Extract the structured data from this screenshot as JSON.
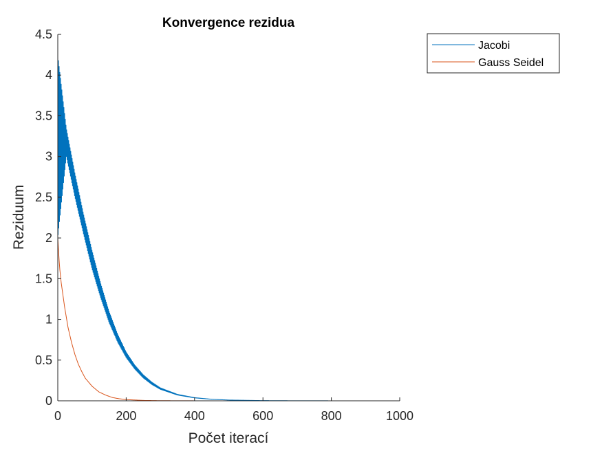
{
  "chart_data": {
    "type": "line",
    "title": "Konvergence rezidua",
    "xlabel": "Počet iterací",
    "ylabel": "Reziduum",
    "xlim": [
      0,
      1000
    ],
    "ylim": [
      0,
      4.5
    ],
    "xticks": [
      "0",
      "200",
      "400",
      "600",
      "800",
      "1000"
    ],
    "yticks": [
      "0",
      "0.5",
      "1",
      "1.5",
      "2",
      "2.5",
      "3",
      "3.5",
      "4",
      "4.5"
    ],
    "grid": false,
    "legend_position": "outside-top-right",
    "series": [
      {
        "name": "Jacobi",
        "color": "#0072BD",
        "oscillating": true,
        "x": [
          0,
          25,
          50,
          75,
          100,
          125,
          150,
          175,
          200,
          225,
          250,
          275,
          300,
          350,
          400,
          450,
          500,
          600,
          700,
          800,
          900,
          1000
        ],
        "y_upper": [
          4.25,
          3.35,
          2.8,
          2.3,
          1.85,
          1.45,
          1.1,
          0.82,
          0.6,
          0.44,
          0.32,
          0.23,
          0.16,
          0.08,
          0.04,
          0.02,
          0.01,
          0.003,
          0.001,
          0.0005,
          0.0002,
          0.0001
        ],
        "y_lower": [
          2.0,
          3.0,
          2.5,
          2.05,
          1.62,
          1.27,
          0.96,
          0.72,
          0.53,
          0.39,
          0.28,
          0.2,
          0.14,
          0.07,
          0.035,
          0.018,
          0.009,
          0.003,
          0.001,
          0.0005,
          0.0002,
          0.0001
        ]
      },
      {
        "name": "Gauss Seidel",
        "color": "#D95319",
        "x": [
          0,
          5,
          10,
          20,
          30,
          40,
          50,
          60,
          70,
          80,
          100,
          120,
          140,
          160,
          180,
          200,
          250,
          300,
          400,
          500,
          600
        ],
        "y": [
          2.0,
          1.65,
          1.45,
          1.15,
          0.9,
          0.72,
          0.57,
          0.45,
          0.36,
          0.28,
          0.18,
          0.11,
          0.07,
          0.04,
          0.025,
          0.015,
          0.005,
          0.002,
          0.0005,
          0.0001,
          0.0
        ]
      }
    ]
  }
}
